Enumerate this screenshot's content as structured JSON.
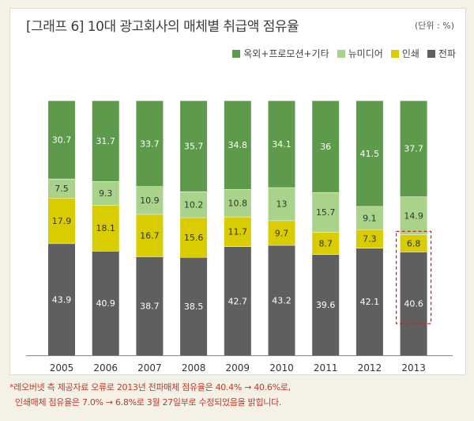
{
  "title": "[그래프 6] 10대 광고회사의 매체별 취급액 점유율",
  "unit": "(단위 : %)",
  "footnote": {
    "line1": "*레오버넷 측 제공자료 오류로 2013년 전파매체 점유율은 40.4% → 40.6%로,",
    "line2": "인쇄매체 점유율은 7.0% → 6.8%로 3월 27일부로 수정되었음을 밝힙니다."
  },
  "colors": {
    "outdoor": "#5e9a4c",
    "newmedia": "#a9d38b",
    "print": "#d9cc00",
    "broadcast": "#5f5f5f",
    "highlight": "#cc2222"
  },
  "chart_data": {
    "type": "bar",
    "stacked": true,
    "categories": [
      "2005",
      "2006",
      "2007",
      "2008",
      "2009",
      "2010",
      "2011",
      "2012",
      "2013"
    ],
    "series": [
      {
        "name": "전파",
        "key": "broadcast",
        "values": [
          43.9,
          40.9,
          38.7,
          38.5,
          42.7,
          43.2,
          39.6,
          42.1,
          40.6
        ]
      },
      {
        "name": "인쇄",
        "key": "print",
        "values": [
          17.9,
          18.1,
          16.7,
          15.6,
          11.7,
          9.7,
          8.7,
          7.3,
          6.8
        ]
      },
      {
        "name": "뉴미디어",
        "key": "newmedia",
        "values": [
          7.5,
          9.3,
          10.9,
          10.2,
          10.8,
          13,
          15.7,
          9.1,
          14.9
        ]
      },
      {
        "name": "옥외+프로모션+기타",
        "key": "outdoor",
        "values": [
          30.7,
          31.7,
          33.7,
          35.7,
          34.8,
          34.1,
          36,
          41.5,
          37.7
        ]
      }
    ],
    "legend_order": [
      "옥외+프로모션+기타",
      "뉴미디어",
      "인쇄",
      "전파"
    ],
    "highlight": {
      "category": "2013",
      "series": [
        "전파",
        "인쇄"
      ]
    },
    "ylim": [
      0,
      100
    ],
    "grid": false,
    "legend": "top-right"
  }
}
